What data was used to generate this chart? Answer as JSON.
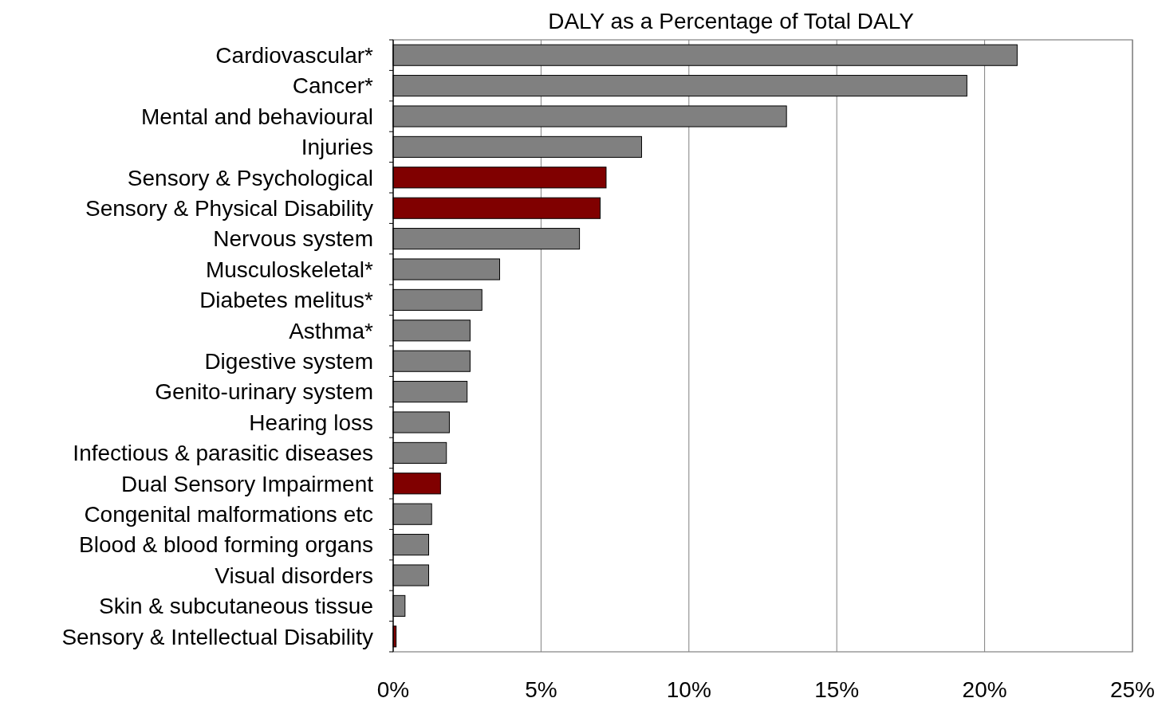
{
  "chart_data": {
    "type": "bar",
    "orientation": "horizontal",
    "title": "DALY as a Percentage of Total DALY",
    "categories": [
      "Cardiovascular*",
      "Cancer*",
      "Mental and behavioural",
      "Injuries",
      "Sensory & Psychological",
      "Sensory & Physical Disability",
      "Nervous system",
      "Musculoskeletal*",
      "Diabetes melitus*",
      "Asthma*",
      "Digestive system",
      "Genito-urinary system",
      "Hearing loss",
      "Infectious & parasitic diseases",
      "Dual Sensory Impairment",
      "Congenital malformations etc",
      "Blood & blood forming organs",
      "Visual disorders",
      "Skin & subcutaneous tissue",
      "Sensory & Intellectual Disability"
    ],
    "values": [
      21.1,
      19.4,
      13.3,
      8.4,
      7.2,
      7.0,
      6.3,
      3.6,
      3.0,
      2.6,
      2.6,
      2.5,
      1.9,
      1.8,
      1.6,
      1.3,
      1.2,
      1.2,
      0.4,
      0.1
    ],
    "colors": [
      "#808080",
      "#808080",
      "#808080",
      "#808080",
      "#800000",
      "#800000",
      "#808080",
      "#808080",
      "#808080",
      "#808080",
      "#808080",
      "#808080",
      "#808080",
      "#808080",
      "#800000",
      "#808080",
      "#808080",
      "#808080",
      "#808080",
      "#800000"
    ],
    "xlim": [
      0,
      25
    ],
    "xticks": [
      {
        "value": 0,
        "label": "0%"
      },
      {
        "value": 5,
        "label": "5%"
      },
      {
        "value": 10,
        "label": "10%"
      },
      {
        "value": 15,
        "label": "15%"
      },
      {
        "value": 20,
        "label": "20%"
      },
      {
        "value": 25,
        "label": "25%"
      }
    ],
    "grid": "x"
  }
}
